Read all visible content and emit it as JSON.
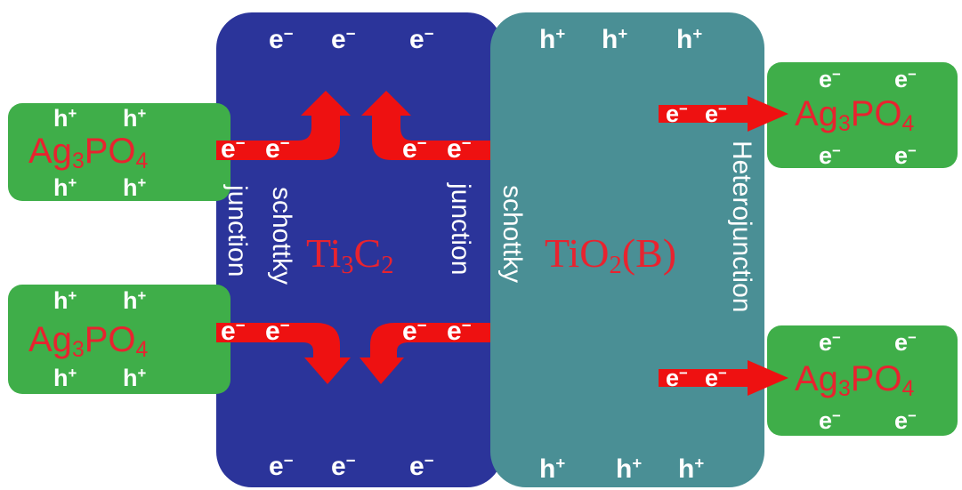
{
  "colors": {
    "ti3c2_block": "#2b349a",
    "tio2_block": "#4a8f95",
    "ag3po4_block": "#3fae49",
    "arrow": "#ee1111",
    "label_red": "#e8232f",
    "text_white": "#ffffff"
  },
  "carriers": {
    "electron": "e",
    "electron_sign": "−",
    "hole": "h",
    "hole_sign": "+"
  },
  "ag3po4": {
    "ag": "Ag",
    "ag_sub": "3",
    "po": "PO",
    "po_sub": "4"
  },
  "ti3c2": {
    "ti": "Ti",
    "ti_sub": "3",
    "c": "C",
    "c_sub": "2"
  },
  "tio2": {
    "tio": "TiO",
    "tio_sub": "2",
    "phase": "(B)"
  },
  "junction_labels": {
    "schottky": "schottky",
    "junction": "junction",
    "heterojunction": "Heterojunction"
  },
  "icons": [
    "electron-transfer-arrow"
  ]
}
